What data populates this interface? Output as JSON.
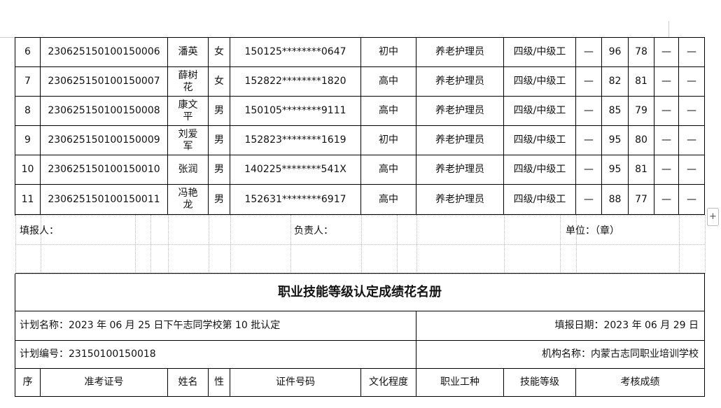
{
  "table": {
    "rows": [
      [
        "6",
        "230625150100150006",
        "潘英",
        "女",
        "150125********0647",
        "初中",
        "养老护理员",
        "四级/中级工",
        "—",
        "96",
        "78",
        "—",
        "—"
      ],
      [
        "7",
        "230625150100150007",
        "薛树花",
        "女",
        "152822********1820",
        "高中",
        "养老护理员",
        "四级/中级工",
        "—",
        "82",
        "81",
        "—",
        "—"
      ],
      [
        "8",
        "230625150100150008",
        "康文平",
        "男",
        "150105********9111",
        "高中",
        "养老护理员",
        "四级/中级工",
        "—",
        "85",
        "79",
        "—",
        "—"
      ],
      [
        "9",
        "230625150100150009",
        "刘爱军",
        "男",
        "152823********1619",
        "初中",
        "养老护理员",
        "四级/中级工",
        "—",
        "95",
        "80",
        "—",
        "—"
      ],
      [
        "10",
        "230625150100150010",
        "张润",
        "男",
        "140225********541X",
        "高中",
        "养老护理员",
        "四级/中级工",
        "—",
        "95",
        "81",
        "—",
        "—"
      ],
      [
        "11",
        "230625150100150011",
        "冯艳龙",
        "男",
        "152631********6917",
        "高中",
        "养老护理员",
        "四级/中级工",
        "—",
        "88",
        "77",
        "—",
        "—"
      ]
    ]
  },
  "footer": {
    "filler": "填报人：",
    "manager": "负责人：",
    "unit": "单位：（章）"
  },
  "title": "职业技能等级认定成绩花名册",
  "plan_name": "计划名称：2023 年 06 月 25 日下午志同学校第 10 批认定",
  "report_date": "填报日期：2023 年 06 月 29 日",
  "plan_no": "计划编号：23150100150018",
  "org": "机构名称：内蒙古志同职业培训学校",
  "header": [
    "序",
    "准考证号",
    "姓名",
    "性",
    "证件号码",
    "文化程度",
    "职业工种",
    "技能等级",
    "考核成绩"
  ]
}
